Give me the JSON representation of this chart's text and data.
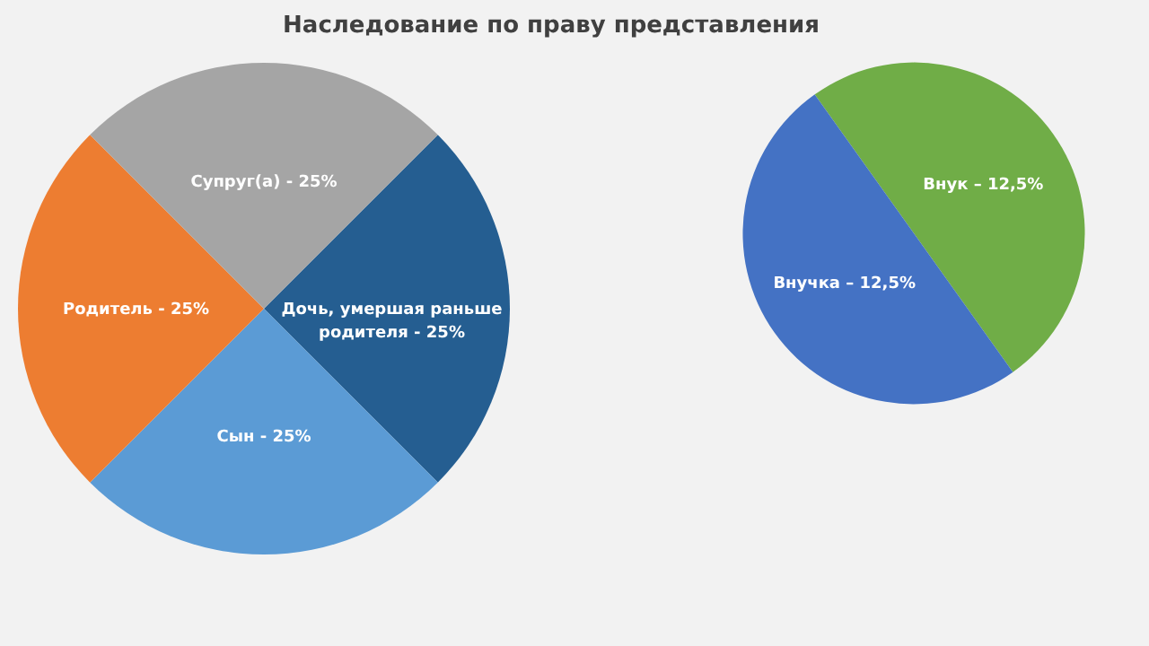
{
  "chart_data": [
    {
      "type": "pie",
      "title": "Наследование по праву представления",
      "categories": [
        "Дочь, умершая раньше родителя",
        "Сын",
        "Родитель",
        "Супруг(а)"
      ],
      "values": [
        25,
        25,
        25,
        25
      ],
      "colors": [
        "#255e91",
        "#5b9bd5",
        "#ed7d31",
        "#a5a5a5"
      ],
      "value_labels": [
        "25%",
        "25%",
        "25%",
        "25%"
      ]
    },
    {
      "type": "pie",
      "categories": [
        "Внук",
        "Внучка"
      ],
      "values": [
        12.5,
        12.5
      ],
      "colors": [
        "#70ad47",
        "#4472c4"
      ],
      "value_labels": [
        "12,5%",
        "12,5%"
      ]
    }
  ]
}
